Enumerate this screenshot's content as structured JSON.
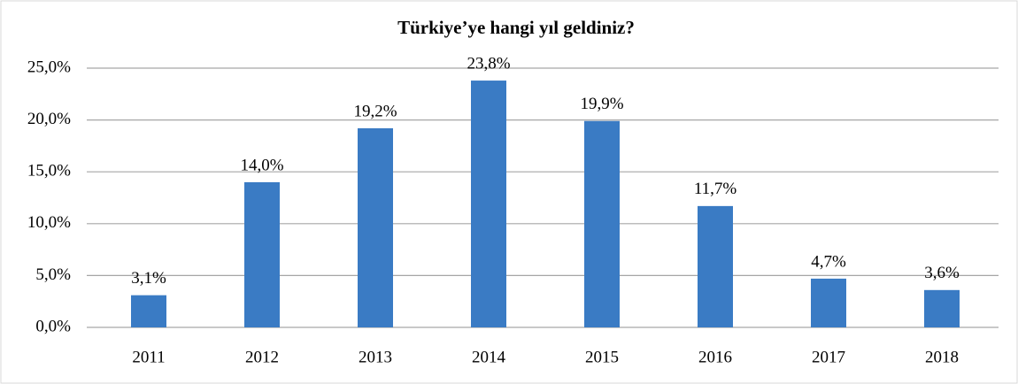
{
  "chart_data": {
    "type": "bar",
    "title": "Türkiye’ye hangi yıl geldiniz?",
    "categories": [
      "2011",
      "2012",
      "2013",
      "2014",
      "2015",
      "2016",
      "2017",
      "2018"
    ],
    "values": [
      3.1,
      14.0,
      19.2,
      23.8,
      19.9,
      11.7,
      4.7,
      3.6
    ],
    "value_labels": [
      "3,1%",
      "14,0%",
      "19,2%",
      "23,8%",
      "19,9%",
      "11,7%",
      "4,7%",
      "3,6%"
    ],
    "color": "#3a7bc4",
    "ylim": [
      0,
      25
    ],
    "yticks": [
      {
        "value": 0,
        "label": "0,0%"
      },
      {
        "value": 5,
        "label": "5,0%"
      },
      {
        "value": 10,
        "label": "10,0%"
      },
      {
        "value": 15,
        "label": "15,0%"
      },
      {
        "value": 20,
        "label": "20,0%"
      },
      {
        "value": 25,
        "label": "25,0%"
      }
    ],
    "grid": true
  }
}
